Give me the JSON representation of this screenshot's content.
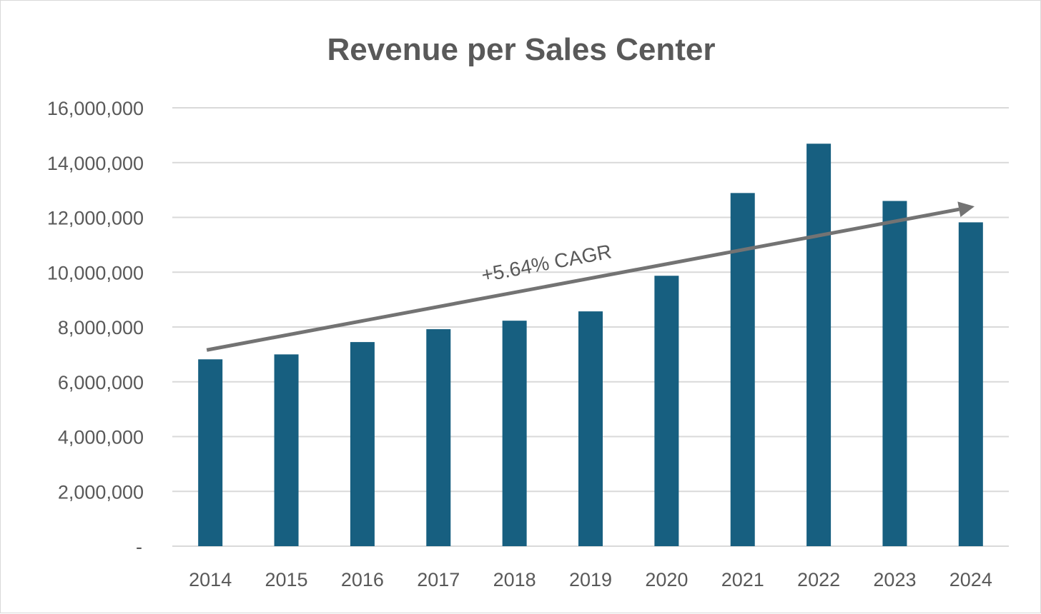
{
  "chart_data": {
    "type": "bar",
    "title": "Revenue per Sales Center",
    "xlabel": "",
    "ylabel": "",
    "categories": [
      "2014",
      "2015",
      "2016",
      "2017",
      "2018",
      "2019",
      "2020",
      "2021",
      "2022",
      "2023",
      "2024"
    ],
    "values": [
      6820000,
      7000000,
      7450000,
      7920000,
      8230000,
      8570000,
      9870000,
      12890000,
      14690000,
      12600000,
      11820000
    ],
    "ylim": [
      0,
      16000000
    ],
    "yticks": [
      0,
      2000000,
      4000000,
      6000000,
      8000000,
      10000000,
      12000000,
      14000000,
      16000000
    ],
    "ytick_labels": [
      "-",
      "2,000,000",
      "4,000,000",
      "6,000,000",
      "8,000,000",
      "10,000,000",
      "12,000,000",
      "14,000,000",
      "16,000,000"
    ],
    "grid": true,
    "bar_color": "#175f80",
    "annotation": {
      "text": "+5.64% CAGR",
      "start_value": 7160000,
      "end_value": 12400000,
      "color": "#737373"
    }
  }
}
